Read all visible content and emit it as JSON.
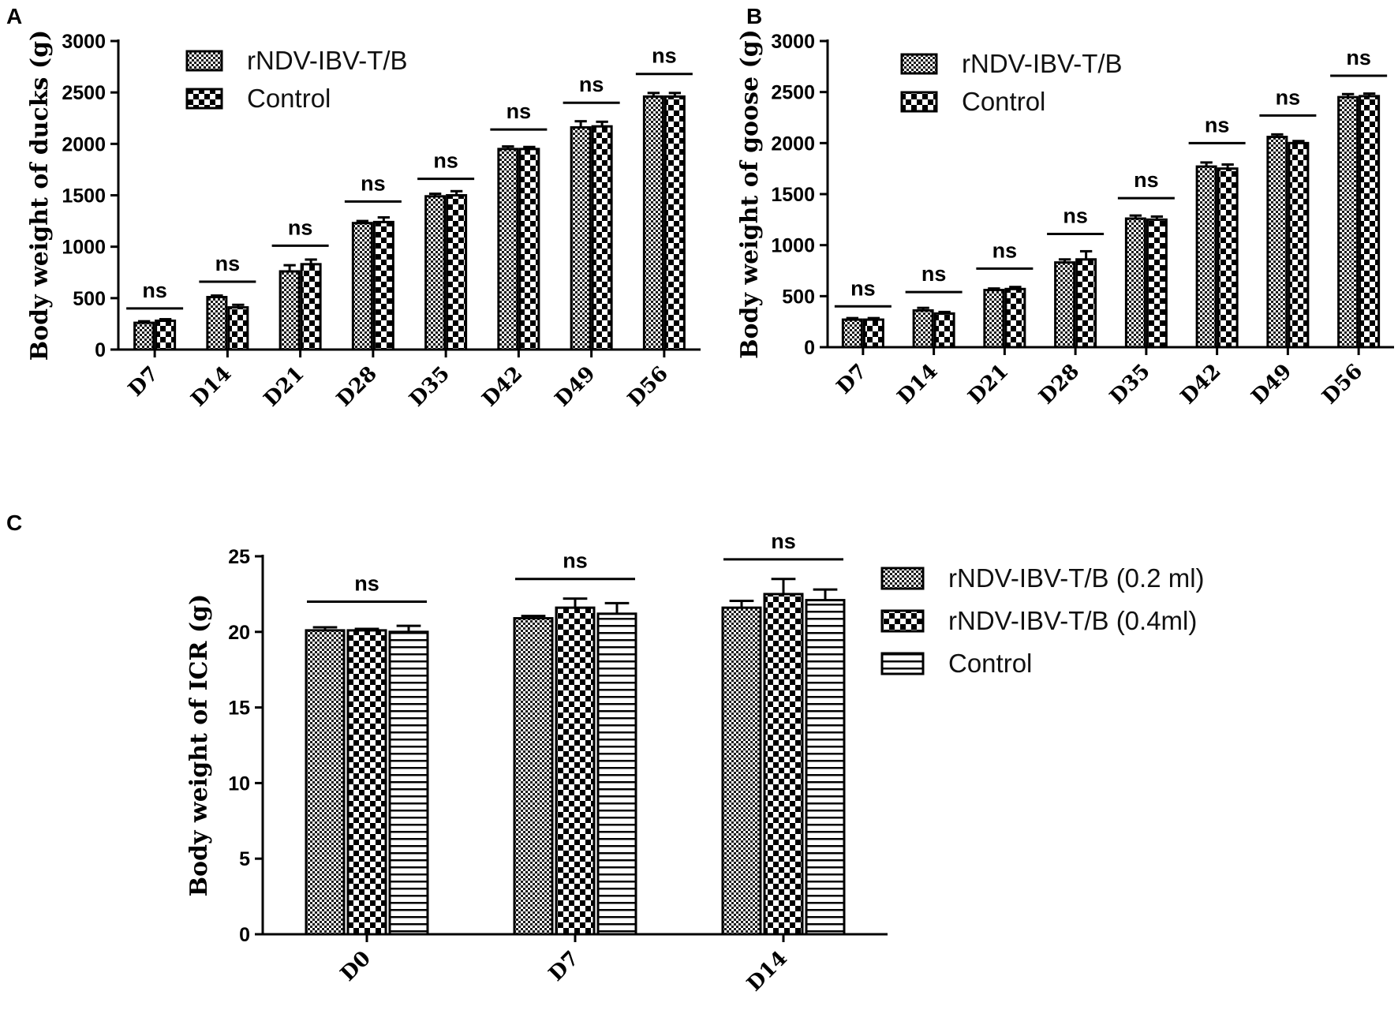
{
  "chart_data": [
    {
      "panel": "A",
      "type": "bar",
      "ylabel": "Body weight of ducks (g)",
      "xlabel": "",
      "ylim": [
        0,
        3000
      ],
      "yticks": [
        0,
        500,
        1000,
        1500,
        2000,
        2500,
        3000
      ],
      "categories": [
        "D7",
        "D14",
        "D21",
        "D28",
        "D35",
        "D42",
        "D49",
        "D56"
      ],
      "series": [
        {
          "name": "rNDV-IBV-T/B",
          "pattern": "fine-check",
          "values": [
            260,
            510,
            760,
            1230,
            1490,
            1950,
            2160,
            2460
          ],
          "errors": [
            15,
            15,
            60,
            20,
            25,
            25,
            60,
            35
          ]
        },
        {
          "name": "Control",
          "pattern": "coarse-check",
          "values": [
            280,
            410,
            830,
            1240,
            1500,
            1950,
            2170,
            2460
          ],
          "errors": [
            15,
            25,
            45,
            45,
            40,
            20,
            45,
            35
          ]
        }
      ],
      "significance": [
        "ns",
        "ns",
        "ns",
        "ns",
        "ns",
        "ns",
        "ns",
        "ns"
      ],
      "significance_bar_levels": [
        400,
        660,
        1010,
        1440,
        1660,
        2140,
        2400,
        2680
      ],
      "legend": "top-left"
    },
    {
      "panel": "B",
      "type": "bar",
      "ylabel": "Body weight of goose (g)",
      "xlabel": "",
      "ylim": [
        0,
        3000
      ],
      "yticks": [
        0,
        500,
        1000,
        1500,
        2000,
        2500,
        3000
      ],
      "categories": [
        "D7",
        "D14",
        "D21",
        "D28",
        "D35",
        "D42",
        "D49",
        "D56"
      ],
      "series": [
        {
          "name": "rNDV-IBV-T/B",
          "pattern": "fine-check",
          "values": [
            270,
            360,
            560,
            830,
            1260,
            1770,
            2060,
            2450
          ],
          "errors": [
            15,
            25,
            15,
            30,
            30,
            40,
            25,
            30
          ]
        },
        {
          "name": "Control",
          "pattern": "coarse-check",
          "values": [
            270,
            330,
            570,
            860,
            1250,
            1750,
            2000,
            2460
          ],
          "errors": [
            15,
            15,
            20,
            80,
            30,
            40,
            20,
            25
          ]
        }
      ],
      "significance": [
        "ns",
        "ns",
        "ns",
        "ns",
        "ns",
        "ns",
        "ns",
        "ns"
      ],
      "significance_bar_levels": [
        400,
        540,
        770,
        1110,
        1460,
        2000,
        2270,
        2660
      ],
      "legend": "top-left"
    },
    {
      "panel": "C",
      "type": "bar",
      "ylabel": "Body weight of ICR (g)",
      "xlabel": "",
      "ylim": [
        0,
        25
      ],
      "yticks": [
        0,
        5,
        10,
        15,
        20,
        25
      ],
      "categories": [
        "D0",
        "D7",
        "D14"
      ],
      "series": [
        {
          "name": "rNDV-IBV-T/B (0.2 ml)",
          "pattern": "fine-check",
          "values": [
            20.1,
            20.9,
            21.6
          ],
          "errors": [
            0.2,
            0.15,
            0.45
          ]
        },
        {
          "name": "rNDV-IBV-T/B (0.4ml)",
          "pattern": "coarse-check",
          "values": [
            20.1,
            21.6,
            22.5
          ],
          "errors": [
            0.1,
            0.6,
            1.0
          ]
        },
        {
          "name": "Control",
          "pattern": "horizontal-lines",
          "values": [
            20.0,
            21.2,
            22.1
          ],
          "errors": [
            0.4,
            0.7,
            0.7
          ]
        }
      ],
      "significance": [
        "ns",
        "ns",
        "ns"
      ],
      "significance_bar_levels": [
        22.0,
        23.5,
        24.8
      ],
      "legend": "right"
    }
  ]
}
